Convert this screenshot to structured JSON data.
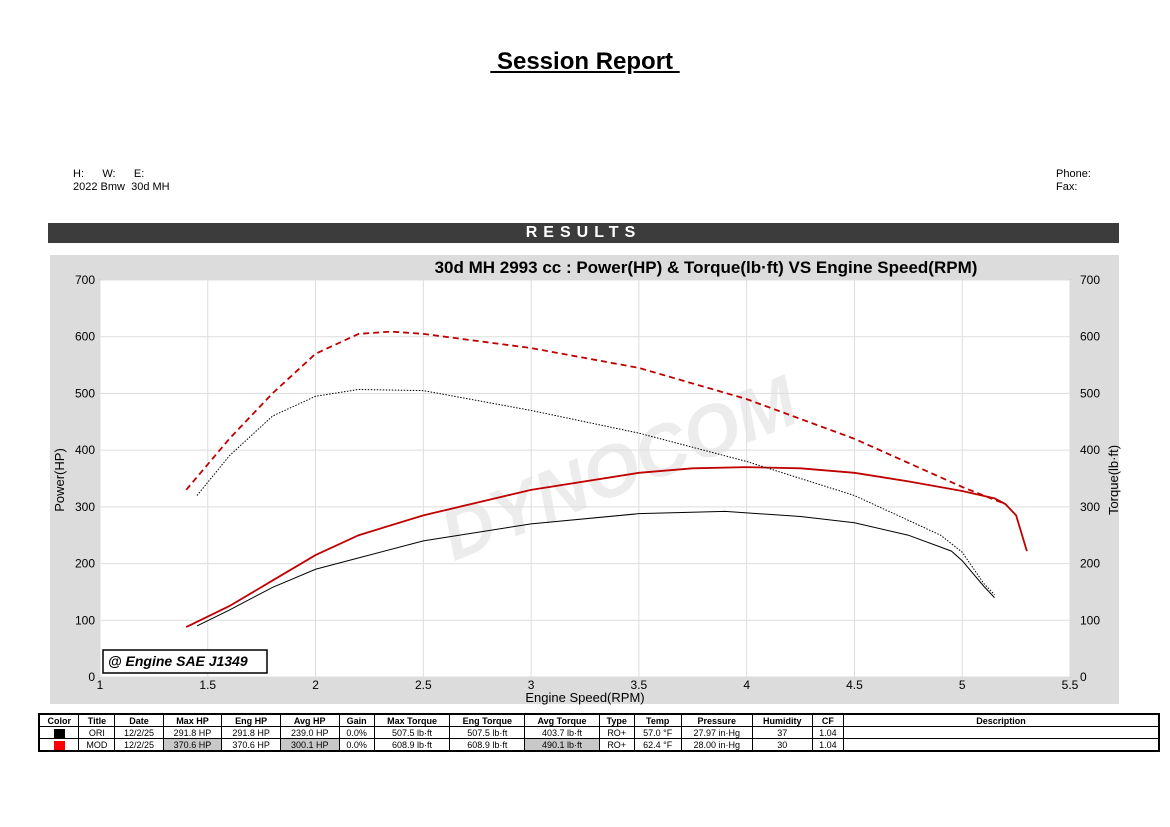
{
  "report": {
    "title": " Session Report ",
    "results_label": "RESULTS",
    "header_left_line1": "H:      W:      E:",
    "header_left_line2": "2022 Bmw  30d MH",
    "header_right_line1": "Phone:",
    "header_right_line2": "Fax:"
  },
  "chart_data": {
    "type": "line",
    "title": "30d MH 2993 cc : Power(HP) & Torque(lb·ft) VS Engine Speed(RPM)",
    "xlabel": "Engine Speed(RPM)",
    "ylabel_left": "Power(HP)",
    "ylabel_right": "Torque(lb·ft)",
    "xlim": [
      1,
      5.5
    ],
    "ylim": [
      0,
      700
    ],
    "grid": true,
    "x_ticks": [
      "1",
      "1.5",
      "2",
      "2.5",
      "3",
      "3.5",
      "4",
      "4.5",
      "5",
      "5.5"
    ],
    "y_ticks": [
      "0",
      "100",
      "200",
      "300",
      "400",
      "500",
      "600",
      "700"
    ],
    "annotation": "@ Engine SAE J1349",
    "watermark": "DYNOCOM",
    "series": [
      {
        "name": "MOD Power",
        "color": "#c00000",
        "style": "solid",
        "x": [
          1.4,
          1.6,
          1.8,
          2.0,
          2.2,
          2.5,
          3.0,
          3.5,
          3.75,
          4.0,
          4.25,
          4.5,
          4.75,
          5.0,
          5.15,
          5.2,
          5.25,
          5.3
        ],
        "y": [
          88,
          125,
          170,
          215,
          250,
          285,
          330,
          360,
          368,
          370,
          368,
          360,
          345,
          328,
          315,
          305,
          285,
          222
        ]
      },
      {
        "name": "ORI Power",
        "color": "#000000",
        "style": "solid",
        "x": [
          1.45,
          1.6,
          1.8,
          2.0,
          2.2,
          2.5,
          3.0,
          3.5,
          3.9,
          4.25,
          4.5,
          4.75,
          4.95,
          5.0,
          5.1,
          5.15
        ],
        "y": [
          90,
          118,
          158,
          190,
          210,
          240,
          270,
          288,
          292,
          283,
          272,
          250,
          222,
          205,
          160,
          140
        ]
      },
      {
        "name": "MOD Torque",
        "color": "#c00000",
        "style": "dashed",
        "x": [
          1.4,
          1.6,
          1.8,
          2.0,
          2.2,
          2.35,
          2.5,
          3.0,
          3.5,
          4.0,
          4.5,
          5.0,
          5.2
        ],
        "y": [
          330,
          420,
          500,
          570,
          605,
          609,
          605,
          580,
          545,
          490,
          420,
          335,
          305
        ]
      },
      {
        "name": "ORI Torque",
        "color": "#000000",
        "style": "dotted",
        "x": [
          1.45,
          1.6,
          1.8,
          2.0,
          2.2,
          2.5,
          3.0,
          3.5,
          4.0,
          4.5,
          4.9,
          5.0,
          5.1,
          5.15
        ],
        "y": [
          320,
          390,
          460,
          495,
          507,
          505,
          470,
          430,
          380,
          320,
          250,
          220,
          165,
          145
        ]
      }
    ]
  },
  "table": {
    "headers": [
      "Color",
      "Title",
      "Date",
      "Max HP",
      "Eng HP",
      "Avg HP",
      "Gain",
      "Max Torque",
      "Eng Torque",
      "Avg Torque",
      "Type",
      "Temp",
      "Pressure",
      "Humidity",
      "CF",
      "Description"
    ],
    "rows": [
      {
        "color": "#000000",
        "cells": [
          "ORI",
          "12/2/25",
          "291.8 HP",
          "291.8 HP",
          "239.0 HP",
          "0.0%",
          "507.5 lb·ft",
          "507.5 lb·ft",
          "403.7 lb·ft",
          "RO+",
          "57.0 °F",
          "27.97 in·Hg",
          "37",
          "1.04",
          ""
        ]
      },
      {
        "color": "#ff0000",
        "cells": [
          "MOD",
          "12/2/25",
          "370.6 HP",
          "370.6 HP",
          "300.1 HP",
          "0.0%",
          "608.9 lb·ft",
          "608.9 lb·ft",
          "490.1 lb·ft",
          "RO+",
          "62.4 °F",
          "28.00 in·Hg",
          "30",
          "1.04",
          ""
        ]
      }
    ]
  }
}
